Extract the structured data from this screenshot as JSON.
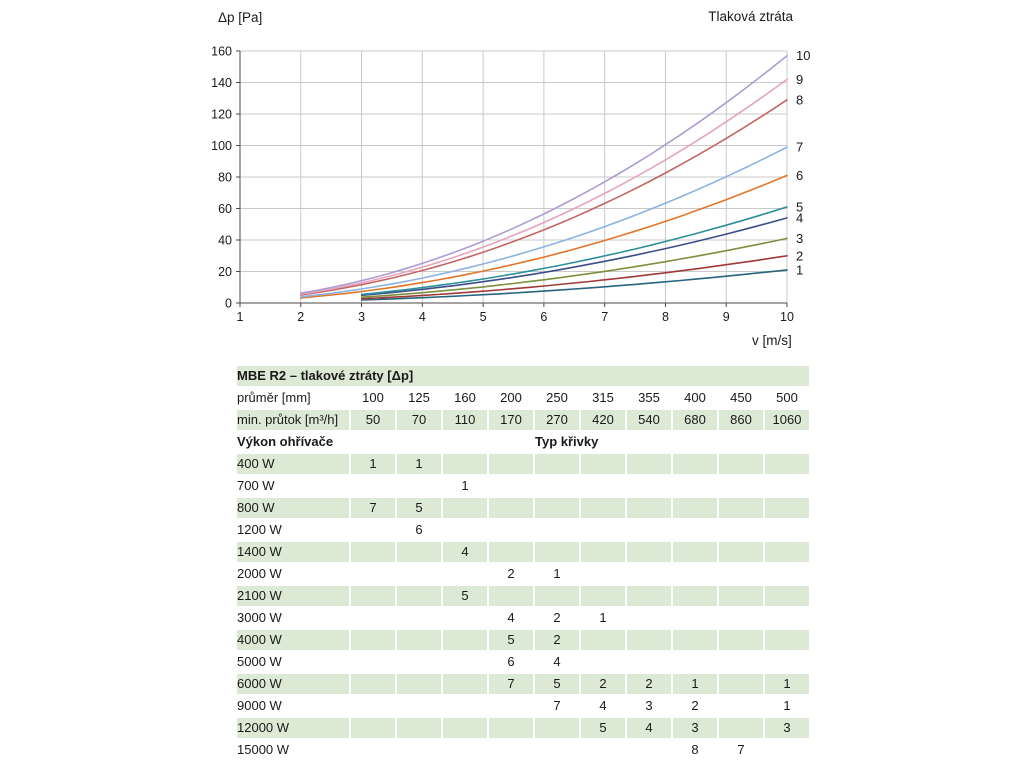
{
  "chart": {
    "title": "Tlaková ztráta",
    "y_axis_title": "Δp [Pa]",
    "x_axis_title": "v [m/s]"
  },
  "chart_data": {
    "type": "line",
    "title": "Tlaková ztráta",
    "xlabel": "v [m/s]",
    "ylabel": "Δp [Pa]",
    "xlim": [
      1,
      10
    ],
    "ylim": [
      0,
      160
    ],
    "x_ticks": [
      1,
      2,
      3,
      4,
      5,
      6,
      7,
      8,
      9,
      10
    ],
    "y_ticks": [
      0,
      20,
      40,
      60,
      80,
      100,
      120,
      140,
      160
    ],
    "grid": true,
    "legend_position": "labels-at-right-end-of-curves",
    "curve_model": "dp = k * v^2",
    "series": [
      {
        "name": "1",
        "color": "#27647e",
        "k": 0.21,
        "v_start": 3,
        "x": [
          3,
          4,
          5,
          6,
          7,
          8,
          9,
          10
        ],
        "y": [
          1.9,
          3.4,
          5.3,
          7.6,
          10.3,
          13.4,
          17.0,
          21
        ]
      },
      {
        "name": "2",
        "color": "#a03a3a",
        "k": 0.3,
        "v_start": 3,
        "x": [
          3,
          4,
          5,
          6,
          7,
          8,
          9,
          10
        ],
        "y": [
          2.7,
          4.8,
          7.5,
          10.8,
          14.7,
          19.2,
          24.3,
          30
        ]
      },
      {
        "name": "3",
        "color": "#7e8f3d",
        "k": 0.41,
        "v_start": 3,
        "x": [
          3,
          4,
          5,
          6,
          7,
          8,
          9,
          10
        ],
        "y": [
          3.7,
          6.6,
          10.3,
          14.8,
          20.1,
          26.2,
          33.2,
          41
        ]
      },
      {
        "name": "4",
        "color": "#3c4e8a",
        "k": 0.54,
        "v_start": 3,
        "x": [
          3,
          4,
          5,
          6,
          7,
          8,
          9,
          10
        ],
        "y": [
          4.9,
          8.6,
          13.5,
          19.4,
          26.5,
          34.6,
          43.7,
          54
        ]
      },
      {
        "name": "5",
        "color": "#2d8f99",
        "k": 0.61,
        "v_start": 3,
        "x": [
          3,
          4,
          5,
          6,
          7,
          8,
          9,
          10
        ],
        "y": [
          5.5,
          9.8,
          15.3,
          22.0,
          29.9,
          39.0,
          49.4,
          61
        ]
      },
      {
        "name": "6",
        "color": "#e0762b",
        "k": 0.81,
        "v_start": 2,
        "x": [
          2,
          3,
          4,
          5,
          6,
          7,
          8,
          9,
          10
        ],
        "y": [
          3.2,
          7.3,
          13.0,
          20.3,
          29.2,
          39.7,
          51.8,
          65.6,
          81
        ]
      },
      {
        "name": "7",
        "color": "#8bb3e0",
        "k": 0.99,
        "v_start": 2,
        "x": [
          2,
          3,
          4,
          5,
          6,
          7,
          8,
          9,
          10
        ],
        "y": [
          4.0,
          8.9,
          15.8,
          24.8,
          35.6,
          48.5,
          63.4,
          80.2,
          99
        ]
      },
      {
        "name": "8",
        "color": "#c36565",
        "k": 1.29,
        "v_start": 2,
        "x": [
          2,
          3,
          4,
          5,
          6,
          7,
          8,
          9,
          10
        ],
        "y": [
          5.2,
          11.6,
          20.6,
          32.3,
          46.4,
          63.2,
          82.6,
          104.5,
          129
        ]
      },
      {
        "name": "9",
        "color": "#e8a3bc",
        "k": 1.42,
        "v_start": 2,
        "x": [
          2,
          3,
          4,
          5,
          6,
          7,
          8,
          9,
          10
        ],
        "y": [
          5.7,
          12.8,
          22.7,
          35.5,
          51.1,
          69.6,
          90.9,
          115.0,
          142
        ]
      },
      {
        "name": "10",
        "color": "#ae9bd4",
        "k": 1.57,
        "v_start": 2,
        "x": [
          2,
          3,
          4,
          5,
          6,
          7,
          8,
          9,
          10
        ],
        "y": [
          6.3,
          14.1,
          25.1,
          39.3,
          56.5,
          76.9,
          100.5,
          127.2,
          157
        ]
      }
    ]
  },
  "table": {
    "title": "MBE R2 – tlakové ztráty [Δp]",
    "diameter_row": {
      "label": "průměr [mm]",
      "values": [
        "100",
        "125",
        "160",
        "200",
        "250",
        "315",
        "355",
        "400",
        "450",
        "500"
      ]
    },
    "flow_row": {
      "label": "min. průtok [m³/h]",
      "values": [
        "50",
        "70",
        "110",
        "170",
        "270",
        "420",
        "540",
        "680",
        "860",
        "1060"
      ]
    },
    "section": {
      "left": "Výkon ohřívače",
      "right": "Typ křivky"
    },
    "power_rows": [
      {
        "label": "400 W",
        "values": [
          "1",
          "1",
          "",
          "",
          "",
          "",
          "",
          "",
          "",
          ""
        ]
      },
      {
        "label": "700 W",
        "values": [
          "",
          "",
          "1",
          "",
          "",
          "",
          "",
          "",
          "",
          ""
        ]
      },
      {
        "label": "800 W",
        "values": [
          "7",
          "5",
          "",
          "",
          "",
          "",
          "",
          "",
          "",
          ""
        ]
      },
      {
        "label": "1200 W",
        "values": [
          "",
          "6",
          "",
          "",
          "",
          "",
          "",
          "",
          "",
          ""
        ]
      },
      {
        "label": "1400 W",
        "values": [
          "",
          "",
          "4",
          "",
          "",
          "",
          "",
          "",
          "",
          ""
        ]
      },
      {
        "label": "2000 W",
        "values": [
          "",
          "",
          "",
          "2",
          "1",
          "",
          "",
          "",
          "",
          ""
        ]
      },
      {
        "label": "2100 W",
        "values": [
          "",
          "",
          "5",
          "",
          "",
          "",
          "",
          "",
          "",
          ""
        ]
      },
      {
        "label": "3000 W",
        "values": [
          "",
          "",
          "",
          "4",
          "2",
          "1",
          "",
          "",
          "",
          ""
        ]
      },
      {
        "label": "4000 W",
        "values": [
          "",
          "",
          "",
          "5",
          "2",
          "",
          "",
          "",
          "",
          ""
        ]
      },
      {
        "label": "5000 W",
        "values": [
          "",
          "",
          "",
          "6",
          "4",
          "",
          "",
          "",
          "",
          ""
        ]
      },
      {
        "label": "6000 W",
        "values": [
          "",
          "",
          "",
          "7",
          "5",
          "2",
          "2",
          "1",
          "",
          "1"
        ]
      },
      {
        "label": "9000 W",
        "values": [
          "",
          "",
          "",
          "",
          "7",
          "4",
          "3",
          "2",
          "",
          "1"
        ]
      },
      {
        "label": "12000 W",
        "values": [
          "",
          "",
          "",
          "",
          "",
          "5",
          "4",
          "3",
          "",
          "3"
        ]
      },
      {
        "label": "15000 W",
        "values": [
          "",
          "",
          "",
          "",
          "",
          "",
          "",
          "8",
          "7",
          ""
        ]
      }
    ],
    "colors": {
      "row_green": "#dce9d4",
      "grid_line": "#c9c9c9",
      "axis_line": "#4a4a4a"
    }
  }
}
